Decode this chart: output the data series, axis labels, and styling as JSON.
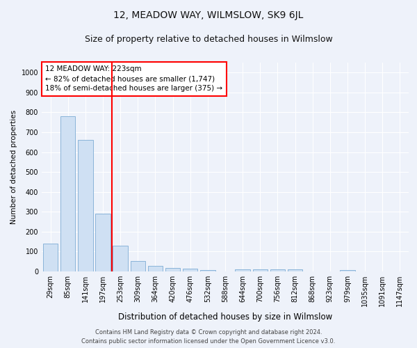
{
  "title": "12, MEADOW WAY, WILMSLOW, SK9 6JL",
  "subtitle": "Size of property relative to detached houses in Wilmslow",
  "xlabel": "Distribution of detached houses by size in Wilmslow",
  "ylabel": "Number of detached properties",
  "bar_labels": [
    "29sqm",
    "85sqm",
    "141sqm",
    "197sqm",
    "253sqm",
    "309sqm",
    "364sqm",
    "420sqm",
    "476sqm",
    "532sqm",
    "588sqm",
    "644sqm",
    "700sqm",
    "756sqm",
    "812sqm",
    "868sqm",
    "923sqm",
    "979sqm",
    "1035sqm",
    "1091sqm",
    "1147sqm"
  ],
  "bar_values": [
    140,
    780,
    660,
    290,
    130,
    52,
    28,
    17,
    15,
    8,
    0,
    10,
    10,
    10,
    9,
    0,
    0,
    7,
    0,
    0,
    0
  ],
  "bar_color": "#cfe0f3",
  "bar_edge_color": "#8ab4d9",
  "vline_color": "red",
  "annotation_text": "12 MEADOW WAY: 223sqm\n← 82% of detached houses are smaller (1,747)\n18% of semi-detached houses are larger (375) →",
  "annotation_box_color": "white",
  "annotation_box_edgecolor": "red",
  "ylim": [
    0,
    1050
  ],
  "yticks": [
    0,
    100,
    200,
    300,
    400,
    500,
    600,
    700,
    800,
    900,
    1000
  ],
  "footer1": "Contains HM Land Registry data © Crown copyright and database right 2024.",
  "footer2": "Contains public sector information licensed under the Open Government Licence v3.0.",
  "background_color": "#eef2fa",
  "plot_background_color": "#eef2fa",
  "grid_color": "#ffffff",
  "title_fontsize": 10,
  "subtitle_fontsize": 9,
  "xlabel_fontsize": 8.5,
  "ylabel_fontsize": 7.5,
  "tick_fontsize": 7,
  "annotation_fontsize": 7.5,
  "footer_fontsize": 6
}
